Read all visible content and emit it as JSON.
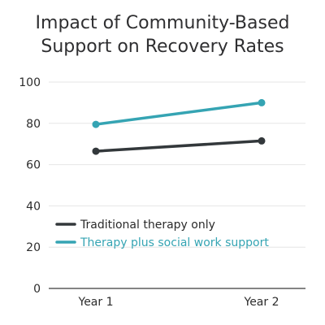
{
  "chart_data": {
    "type": "line",
    "title_lines": [
      "Impact of Community-Based",
      "Support on Recovery Rates"
    ],
    "categories": [
      "Year 1",
      "Year 2"
    ],
    "ylim": [
      0,
      100
    ],
    "yticks": [
      0,
      20,
      40,
      60,
      80,
      100
    ],
    "grid": true,
    "legend_position": "middle-left",
    "series": [
      {
        "name": "Traditional therapy only",
        "values": [
          66.5,
          71.5
        ],
        "color": "#33383b"
      },
      {
        "name": "Therapy plus social work support",
        "values": [
          79.5,
          90
        ],
        "color": "#35a4b3"
      }
    ]
  }
}
